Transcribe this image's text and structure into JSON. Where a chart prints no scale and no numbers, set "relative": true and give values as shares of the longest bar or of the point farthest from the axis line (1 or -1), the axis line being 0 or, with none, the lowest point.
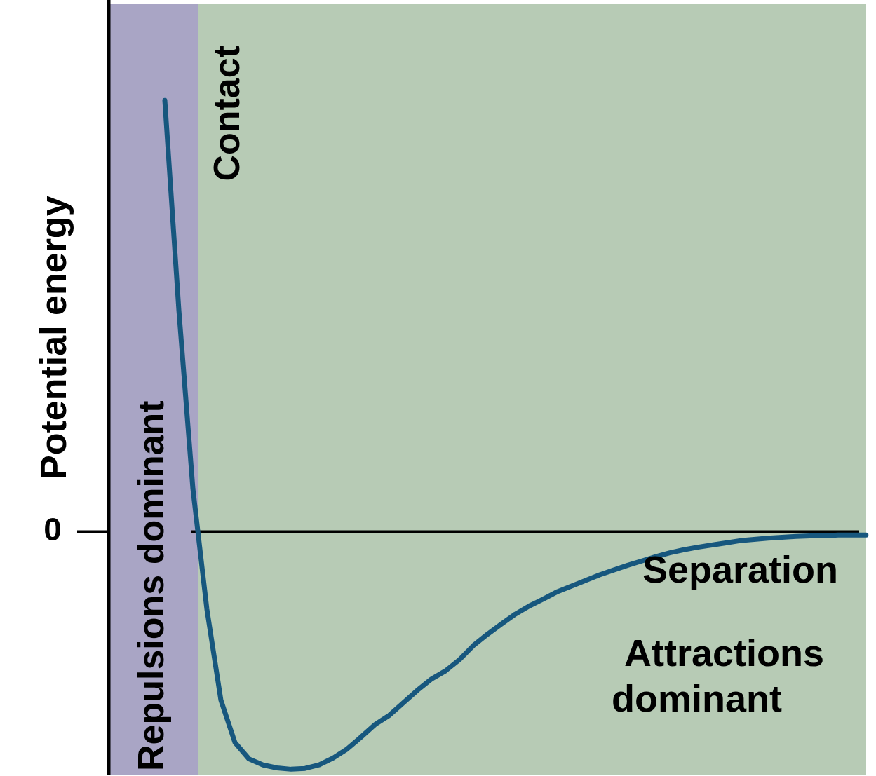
{
  "chart_data": {
    "type": "line",
    "relative": true,
    "xlabel": "Separation",
    "ylabel": "Potential energy",
    "marker": "none",
    "line_style": "solid",
    "categories": [
      null,
      null,
      null,
      null,
      null,
      null,
      null,
      null,
      null,
      null,
      null,
      null,
      null,
      null,
      null,
      null,
      null,
      null,
      null,
      null,
      null,
      null,
      null,
      null,
      null,
      null,
      null,
      null,
      null,
      null,
      null,
      null,
      null,
      null,
      null,
      null,
      null,
      null,
      null,
      null,
      null,
      null,
      null,
      null,
      null,
      null,
      null,
      null,
      null,
      null,
      null,
      null,
      null,
      null,
      null
    ],
    "series": [
      {
        "color": "#17577e",
        "values": [
          null,
          null,
          null,
          null,
          1.0,
          0.514,
          0.1,
          -0.18,
          -0.391,
          -0.489,
          -0.527,
          -0.541,
          -0.548,
          -0.551,
          -0.549,
          -0.541,
          -0.525,
          -0.504,
          -0.476,
          -0.447,
          -0.426,
          -0.397,
          -0.368,
          -0.342,
          -0.323,
          -0.297,
          -0.264,
          -0.238,
          -0.214,
          -0.191,
          -0.172,
          -0.156,
          -0.139,
          -0.126,
          -0.113,
          -0.1,
          -0.089,
          -0.078,
          -0.068,
          -0.058,
          -0.049,
          -0.042,
          -0.036,
          -0.031,
          -0.026,
          -0.021,
          -0.018,
          -0.015,
          -0.013,
          -0.011,
          -0.01,
          -0.01,
          -0.008,
          -0.008,
          -0.008
        ]
      }
    ],
    "annotations": [
      "Contact",
      "Repulsions dominant",
      "Attractions dominant",
      "0"
    ]
  }
}
